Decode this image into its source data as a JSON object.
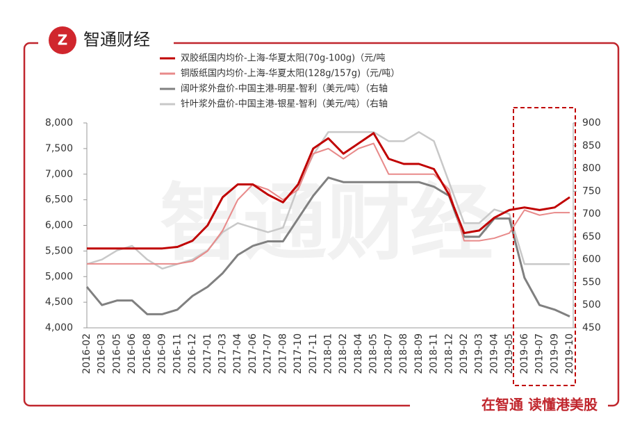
{
  "header": {
    "brand": "智通财经"
  },
  "footer": {
    "slogan": "在智通 读懂港美股"
  },
  "watermark": "智通财经",
  "chart_data": {
    "type": "line",
    "categories": [
      "2016-02",
      "2016-03",
      "2016-05",
      "2016-06",
      "2016-08",
      "2016-09",
      "2016-11",
      "2016-12",
      "2017-01",
      "2017-03",
      "2017-04",
      "2017-06",
      "2017-07",
      "2017-08",
      "2017-10",
      "2017-11",
      "2018-01",
      "2018-02",
      "2018-04",
      "2018-05",
      "2018-07",
      "2018-08",
      "2018-09",
      "2018-11",
      "2018-12",
      "2019-02",
      "2019-03",
      "2019-04",
      "2019-05",
      "2019-06",
      "2019-07",
      "2019-09",
      "2019-10"
    ],
    "series": [
      {
        "name": "双胶纸国内均价-上海-华夏太阳(70g-100g)（元/吨",
        "color": "#c00000",
        "width": 3,
        "values": [
          5550,
          5550,
          5550,
          5550,
          5550,
          5550,
          5580,
          5700,
          6000,
          6550,
          6800,
          6800,
          6600,
          6450,
          6800,
          7500,
          7700,
          7400,
          7600,
          7800,
          7300,
          7200,
          7200,
          7100,
          6600,
          5850,
          5900,
          6150,
          6300,
          6350,
          6300,
          6350,
          6550
        ]
      },
      {
        "name": "铜版纸国内均价-上海-华夏太阳(128g/157g)（元/吨）",
        "color": "#e88a8a",
        "width": 2,
        "values": [
          5250,
          5250,
          5250,
          5250,
          5250,
          5250,
          5250,
          5300,
          5500,
          5900,
          6500,
          6800,
          6700,
          6500,
          6700,
          7400,
          7500,
          7300,
          7500,
          7600,
          7000,
          7000,
          7000,
          7000,
          6700,
          5700,
          5700,
          5750,
          5850,
          6300,
          6200,
          6250,
          6250
        ]
      },
      {
        "name": "阔叶浆外盘价-中国主港-明星-智利（美元/吨）（右轴",
        "color": "#808080",
        "width": 3,
        "axis": "y2",
        "values": [
          540,
          500,
          510,
          510,
          480,
          480,
          490,
          520,
          540,
          570,
          610,
          630,
          640,
          640,
          690,
          740,
          780,
          770,
          770,
          770,
          770,
          770,
          770,
          760,
          740,
          650,
          650,
          690,
          690,
          560,
          500,
          490,
          475
        ]
      },
      {
        "name": "针叶浆外盘价-中国主港-银星-智利（美元/吨）（右轴",
        "color": "#c8c8c8",
        "width": 2.5,
        "axis": "y2",
        "values": [
          590,
          600,
          620,
          630,
          600,
          580,
          590,
          600,
          620,
          660,
          680,
          670,
          660,
          670,
          760,
          830,
          880,
          880,
          880,
          880,
          860,
          860,
          880,
          860,
          770,
          680,
          680,
          710,
          700,
          590,
          590,
          590,
          590
        ]
      }
    ],
    "ylim": [
      4000,
      8000
    ],
    "yticks": [
      {
        "value": 4000,
        "label": "4,000"
      },
      {
        "value": 4500,
        "label": "4,500"
      },
      {
        "value": 5000,
        "label": "5,000"
      },
      {
        "value": 5500,
        "label": "5,500"
      },
      {
        "value": 6000,
        "label": "6,000"
      },
      {
        "value": 6500,
        "label": "6,500"
      },
      {
        "value": 7000,
        "label": "7,000"
      },
      {
        "value": 7500,
        "label": "7,500"
      },
      {
        "value": 8000,
        "label": "8,000"
      }
    ],
    "y2lim": [
      450,
      900
    ],
    "y2ticks": [
      450,
      500,
      550,
      600,
      650,
      700,
      750,
      800,
      850,
      900
    ],
    "highlight_color": "#c00000"
  }
}
